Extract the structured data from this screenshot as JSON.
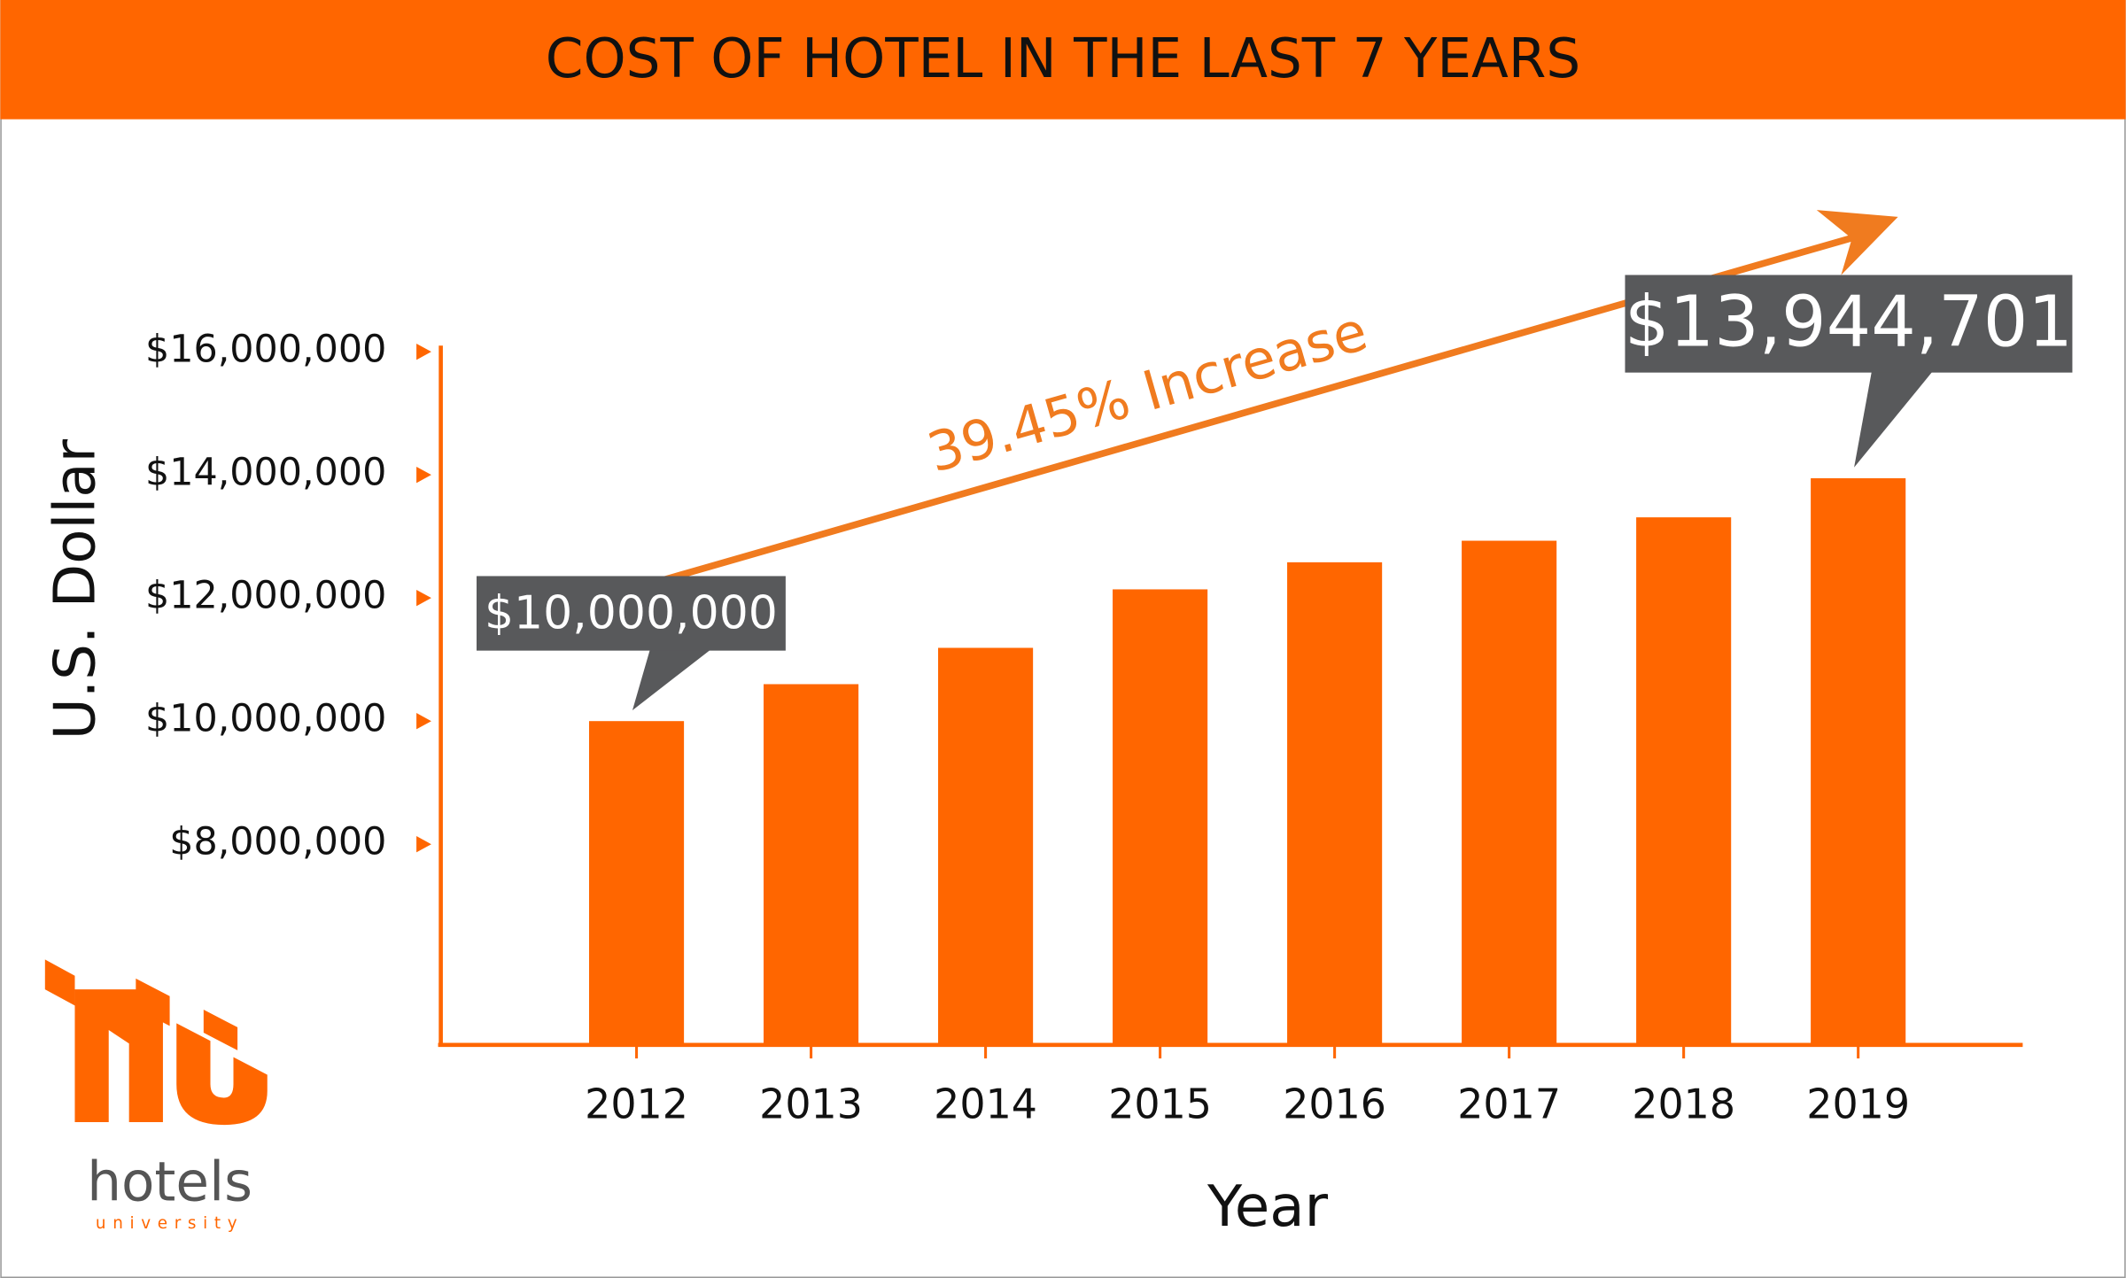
{
  "chart_data": {
    "type": "bar",
    "title": "COST OF HOTEL IN THE LAST 7 YEARS",
    "x_label": "Year",
    "y_label": "U.S. Dollar",
    "categories": [
      "2012",
      "2013",
      "2014",
      "2015",
      "2016",
      "2017",
      "2018",
      "2019"
    ],
    "values": [
      10000000,
      10600000,
      11190000,
      12140000,
      12580000,
      12930000,
      13310000,
      13944701
    ],
    "value_labels": [
      "$10,000,000",
      null,
      null,
      null,
      null,
      null,
      null,
      "$13,944,701"
    ],
    "color": "#ff6600",
    "ylim": [
      4740000,
      16100000
    ],
    "yticks": [
      {
        "value": 8000000,
        "label": "$8,000,000"
      },
      {
        "value": 10000000,
        "label": "$10,000,000"
      },
      {
        "value": 12000000,
        "label": "$12,000,000"
      },
      {
        "value": 14000000,
        "label": "$14,000,000"
      },
      {
        "value": 16000000,
        "label": "$16,000,000"
      }
    ],
    "annotation": "39.45% Increase"
  },
  "logo": {
    "name": "hotels",
    "tagline": "university"
  }
}
